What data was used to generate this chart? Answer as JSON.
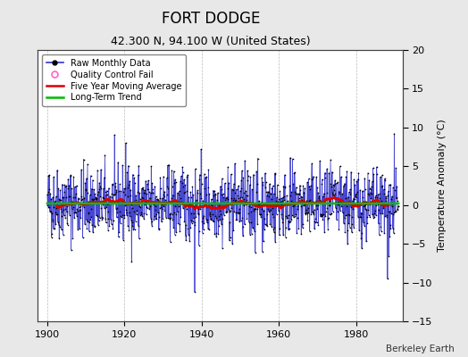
{
  "title": "FORT DODGE",
  "subtitle": "42.300 N, 94.100 W (United States)",
  "ylabel_right": "Temperature Anomaly (°C)",
  "watermark": "Berkeley Earth",
  "xlim": [
    1897.5,
    1992
  ],
  "ylim": [
    -15,
    20
  ],
  "yticks": [
    -15,
    -10,
    -5,
    0,
    5,
    10,
    15,
    20
  ],
  "xticks": [
    1900,
    1920,
    1940,
    1960,
    1980
  ],
  "bg_color": "#e8e8e8",
  "plot_bg_color": "#ffffff",
  "raw_color": "#3333cc",
  "raw_marker_color": "#000000",
  "ma_color": "#dd0000",
  "trend_color": "#00bb00",
  "qc_color": "#ff66cc",
  "grid_color": "#bbbbbb",
  "legend_labels": [
    "Raw Monthly Data",
    "Quality Control Fail",
    "Five Year Moving Average",
    "Long-Term Trend"
  ],
  "title_fontsize": 12,
  "subtitle_fontsize": 9,
  "tick_fontsize": 8,
  "label_fontsize": 8,
  "noise_std": 2.3,
  "trend_slope": -0.003,
  "trend_intercept": 0.25,
  "trend_display_val": 0.2,
  "ma_window": 60,
  "seed": 42,
  "year_start": 1900,
  "year_end": 1991
}
